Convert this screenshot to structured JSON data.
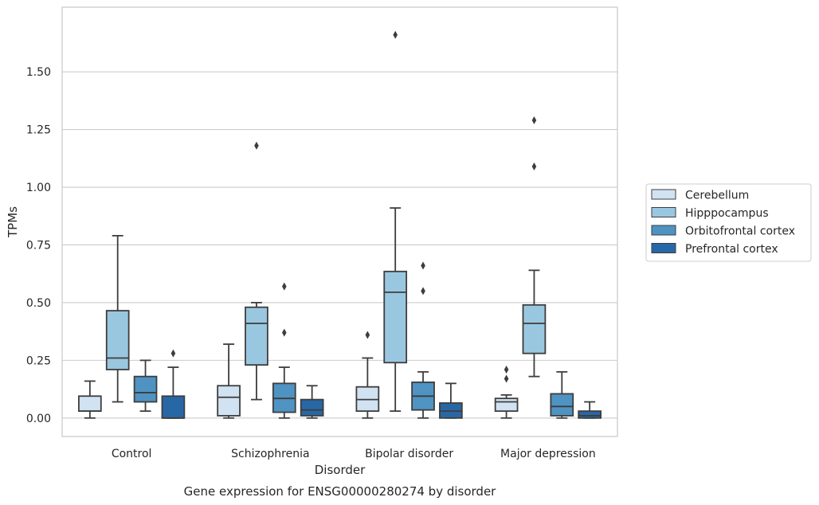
{
  "chart_data": {
    "type": "boxplot",
    "xlabel": "Disorder",
    "ylabel": "TPMs",
    "caption": "Gene expression for ENSG00000280274 by disorder",
    "ylim": [
      -0.08,
      1.78
    ],
    "yticks": [
      0.0,
      0.25,
      0.5,
      0.75,
      1.0,
      1.25,
      1.5
    ],
    "ytick_labels": [
      "0.00",
      "0.25",
      "0.50",
      "0.75",
      "1.00",
      "1.25",
      "1.50"
    ],
    "grid": "horizontal",
    "legend_position": "right",
    "categories": [
      "Control",
      "Schizophrenia",
      "Bipolar disorder",
      "Major depression"
    ],
    "series": [
      {
        "name": "Cerebellum",
        "color": "#d1e2f2",
        "boxes": [
          {
            "whislo": 0.0,
            "q1": 0.03,
            "med": 0.03,
            "q3": 0.095,
            "whishi": 0.16,
            "fliers": []
          },
          {
            "whislo": 0.0,
            "q1": 0.01,
            "med": 0.09,
            "q3": 0.14,
            "whishi": 0.32,
            "fliers": []
          },
          {
            "whislo": 0.0,
            "q1": 0.03,
            "med": 0.08,
            "q3": 0.135,
            "whishi": 0.26,
            "fliers": [
              0.36
            ]
          },
          {
            "whislo": 0.0,
            "q1": 0.03,
            "med": 0.07,
            "q3": 0.085,
            "whishi": 0.1,
            "fliers": [
              0.17,
              0.21
            ]
          }
        ]
      },
      {
        "name": "Hipppocampus",
        "color": "#9ac7e0",
        "boxes": [
          {
            "whislo": 0.07,
            "q1": 0.21,
            "med": 0.26,
            "q3": 0.465,
            "whishi": 0.79,
            "fliers": []
          },
          {
            "whislo": 0.08,
            "q1": 0.23,
            "med": 0.41,
            "q3": 0.48,
            "whishi": 0.5,
            "fliers": [
              1.18
            ]
          },
          {
            "whislo": 0.03,
            "q1": 0.24,
            "med": 0.545,
            "q3": 0.635,
            "whishi": 0.91,
            "fliers": [
              1.66
            ]
          },
          {
            "whislo": 0.18,
            "q1": 0.28,
            "med": 0.41,
            "q3": 0.49,
            "whishi": 0.64,
            "fliers": [
              1.09,
              1.29
            ]
          }
        ]
      },
      {
        "name": "Orbitofrontal cortex",
        "color": "#4f93c2",
        "boxes": [
          {
            "whislo": 0.03,
            "q1": 0.07,
            "med": 0.11,
            "q3": 0.18,
            "whishi": 0.25,
            "fliers": []
          },
          {
            "whislo": 0.0,
            "q1": 0.025,
            "med": 0.085,
            "q3": 0.15,
            "whishi": 0.22,
            "fliers": [
              0.37,
              0.57
            ]
          },
          {
            "whislo": 0.0,
            "q1": 0.035,
            "med": 0.095,
            "q3": 0.155,
            "whishi": 0.2,
            "fliers": [
              0.55,
              0.66
            ]
          },
          {
            "whislo": 0.0,
            "q1": 0.01,
            "med": 0.05,
            "q3": 0.105,
            "whishi": 0.2,
            "fliers": []
          }
        ]
      },
      {
        "name": "Prefrontal cortex",
        "color": "#2867a6",
        "boxes": [
          {
            "whislo": 0.0,
            "q1": 0.0,
            "med": 0.0,
            "q3": 0.095,
            "whishi": 0.22,
            "fliers": [
              0.28
            ]
          },
          {
            "whislo": 0.0,
            "q1": 0.01,
            "med": 0.035,
            "q3": 0.08,
            "whishi": 0.14,
            "fliers": []
          },
          {
            "whislo": 0.0,
            "q1": 0.0,
            "med": 0.03,
            "q3": 0.065,
            "whishi": 0.15,
            "fliers": []
          },
          {
            "whislo": 0.0,
            "q1": 0.0,
            "med": 0.01,
            "q3": 0.03,
            "whishi": 0.07,
            "fliers": []
          }
        ]
      }
    ]
  }
}
